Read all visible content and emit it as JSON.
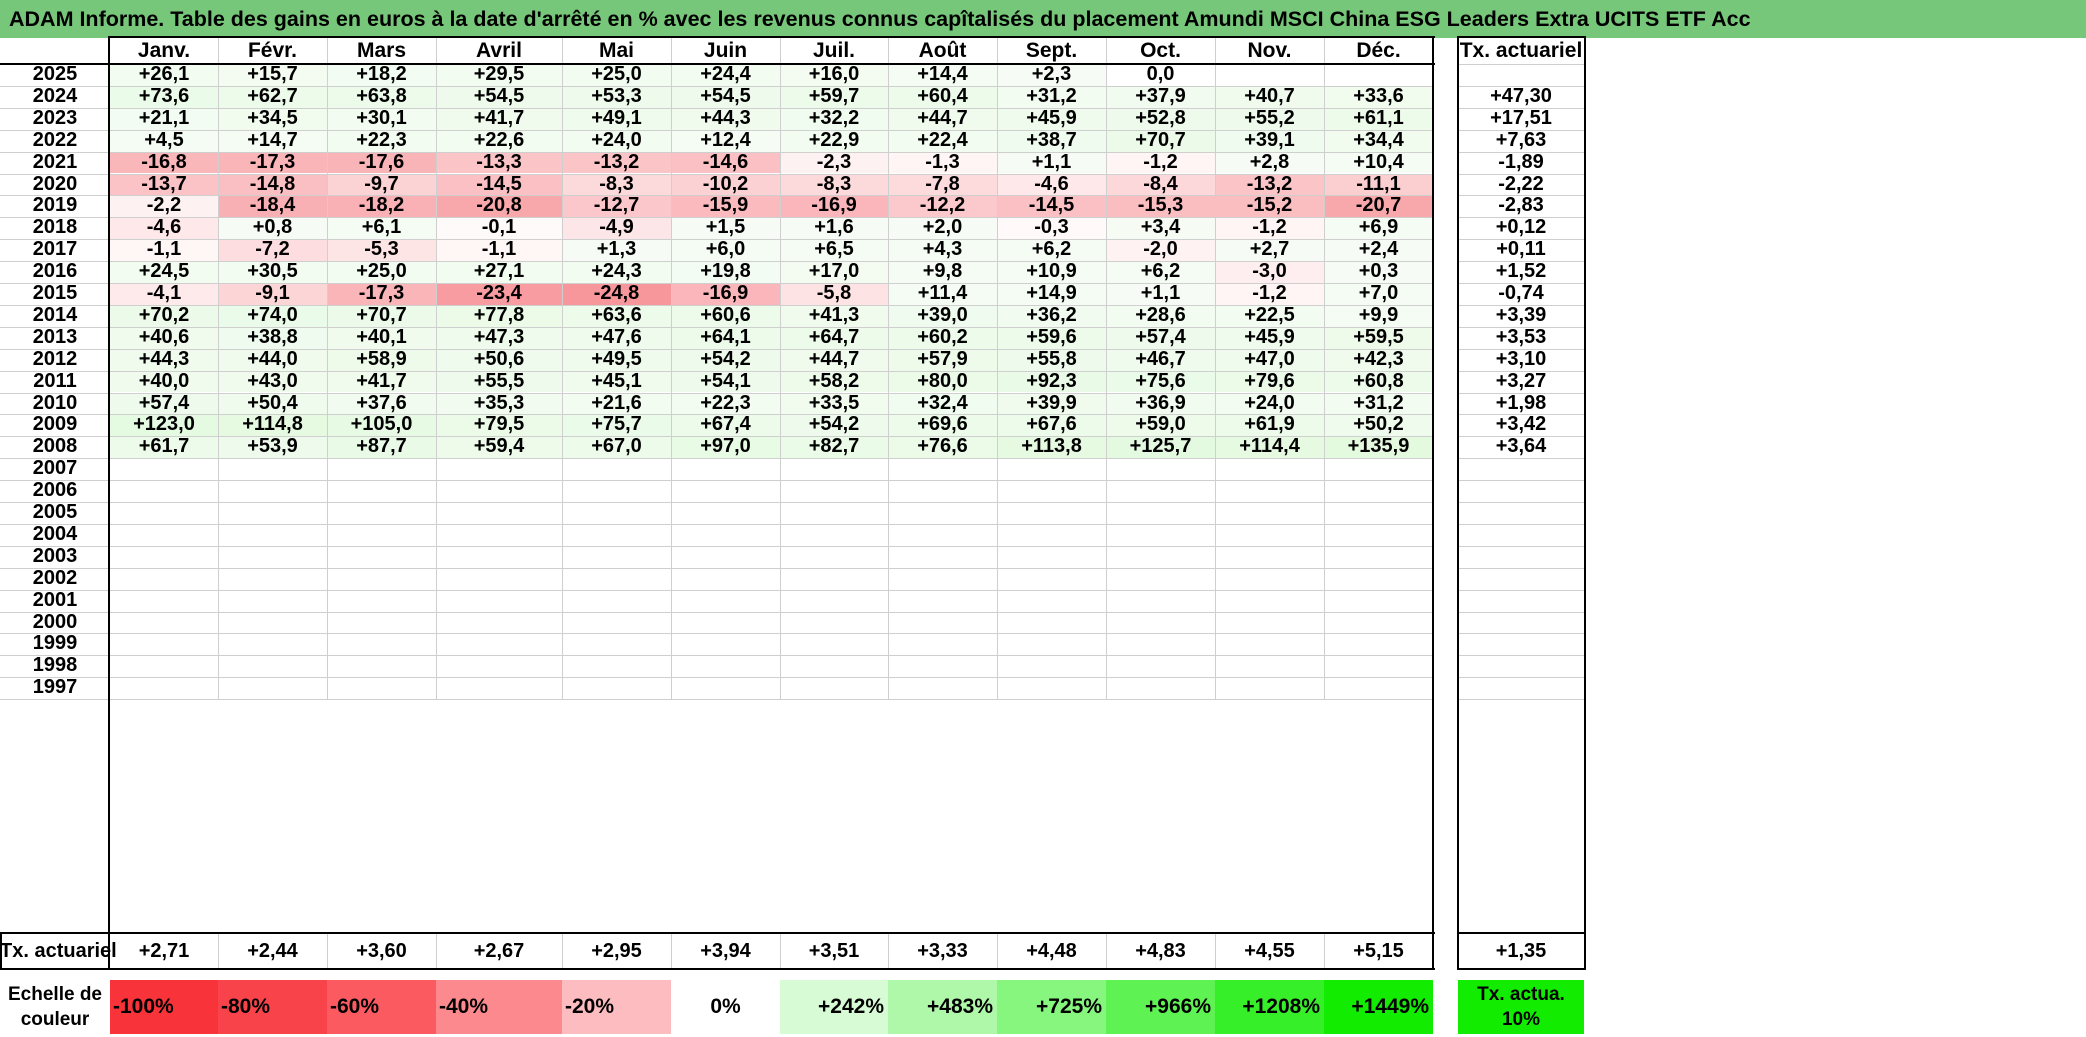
{
  "title": "ADAM Informe. Table des gains en euros à la date d'arrêté en % avec les revenus connus capîtalisés du placement Amundi MSCI China ESG Leaders Extra UCITS ETF Acc",
  "months": [
    "Janv.",
    "Févr.",
    "Mars",
    "Avril",
    "Mai",
    "Juin",
    "Juil.",
    "Août",
    "Sept.",
    "Oct.",
    "Nov.",
    "Déc."
  ],
  "annual_header": "Tx. actuariel",
  "rows": [
    {
      "year": "2025",
      "values": [
        "+26,1",
        "+15,7",
        "+18,2",
        "+29,5",
        "+25,0",
        "+24,4",
        "+16,0",
        "+14,4",
        "+2,3",
        "0,0",
        "",
        ""
      ],
      "annual": ""
    },
    {
      "year": "2024",
      "values": [
        "+73,6",
        "+62,7",
        "+63,8",
        "+54,5",
        "+53,3",
        "+54,5",
        "+59,7",
        "+60,4",
        "+31,2",
        "+37,9",
        "+40,7",
        "+33,6"
      ],
      "annual": "+47,30"
    },
    {
      "year": "2023",
      "values": [
        "+21,1",
        "+34,5",
        "+30,1",
        "+41,7",
        "+49,1",
        "+44,3",
        "+32,2",
        "+44,7",
        "+45,9",
        "+52,8",
        "+55,2",
        "+61,1"
      ],
      "annual": "+17,51"
    },
    {
      "year": "2022",
      "values": [
        "+4,5",
        "+14,7",
        "+22,3",
        "+22,6",
        "+24,0",
        "+12,4",
        "+22,9",
        "+22,4",
        "+38,7",
        "+70,7",
        "+39,1",
        "+34,4"
      ],
      "annual": "+7,63"
    },
    {
      "year": "2021",
      "values": [
        "-16,8",
        "-17,3",
        "-17,6",
        "-13,3",
        "-13,2",
        "-14,6",
        "-2,3",
        "-1,3",
        "+1,1",
        "-1,2",
        "+2,8",
        "+10,4"
      ],
      "annual": "-1,89"
    },
    {
      "year": "2020",
      "values": [
        "-13,7",
        "-14,8",
        "-9,7",
        "-14,5",
        "-8,3",
        "-10,2",
        "-8,3",
        "-7,8",
        "-4,6",
        "-8,4",
        "-13,2",
        "-11,1"
      ],
      "annual": "-2,22"
    },
    {
      "year": "2019",
      "values": [
        "-2,2",
        "-18,4",
        "-18,2",
        "-20,8",
        "-12,7",
        "-15,9",
        "-16,9",
        "-12,2",
        "-14,5",
        "-15,3",
        "-15,2",
        "-20,7"
      ],
      "annual": "-2,83"
    },
    {
      "year": "2018",
      "values": [
        "-4,6",
        "+0,8",
        "+6,1",
        "-0,1",
        "-4,9",
        "+1,5",
        "+1,6",
        "+2,0",
        "-0,3",
        "+3,4",
        "-1,2",
        "+6,9"
      ],
      "annual": "+0,12"
    },
    {
      "year": "2017",
      "values": [
        "-1,1",
        "-7,2",
        "-5,3",
        "-1,1",
        "+1,3",
        "+6,0",
        "+6,5",
        "+4,3",
        "+6,2",
        "-2,0",
        "+2,7",
        "+2,4"
      ],
      "annual": "+0,11"
    },
    {
      "year": "2016",
      "values": [
        "+24,5",
        "+30,5",
        "+25,0",
        "+27,1",
        "+24,3",
        "+19,8",
        "+17,0",
        "+9,8",
        "+10,9",
        "+6,2",
        "-3,0",
        "+0,3"
      ],
      "annual": "+1,52"
    },
    {
      "year": "2015",
      "values": [
        "-4,1",
        "-9,1",
        "-17,3",
        "-23,4",
        "-24,8",
        "-16,9",
        "-5,8",
        "+11,4",
        "+14,9",
        "+1,1",
        "-1,2",
        "+7,0"
      ],
      "annual": "-0,74"
    },
    {
      "year": "2014",
      "values": [
        "+70,2",
        "+74,0",
        "+70,7",
        "+77,8",
        "+63,6",
        "+60,6",
        "+41,3",
        "+39,0",
        "+36,2",
        "+28,6",
        "+22,5",
        "+9,9"
      ],
      "annual": "+3,39"
    },
    {
      "year": "2013",
      "values": [
        "+40,6",
        "+38,8",
        "+40,1",
        "+47,3",
        "+47,6",
        "+64,1",
        "+64,7",
        "+60,2",
        "+59,6",
        "+57,4",
        "+45,9",
        "+59,5"
      ],
      "annual": "+3,53"
    },
    {
      "year": "2012",
      "values": [
        "+44,3",
        "+44,0",
        "+58,9",
        "+50,6",
        "+49,5",
        "+54,2",
        "+44,7",
        "+57,9",
        "+55,8",
        "+46,7",
        "+47,0",
        "+42,3"
      ],
      "annual": "+3,10"
    },
    {
      "year": "2011",
      "values": [
        "+40,0",
        "+43,0",
        "+41,7",
        "+55,5",
        "+45,1",
        "+54,1",
        "+58,2",
        "+80,0",
        "+92,3",
        "+75,6",
        "+79,6",
        "+60,8"
      ],
      "annual": "+3,27"
    },
    {
      "year": "2010",
      "values": [
        "+57,4",
        "+50,4",
        "+37,6",
        "+35,3",
        "+21,6",
        "+22,3",
        "+33,5",
        "+32,4",
        "+39,9",
        "+36,9",
        "+24,0",
        "+31,2"
      ],
      "annual": "+1,98"
    },
    {
      "year": "2009",
      "values": [
        "+123,0",
        "+114,8",
        "+105,0",
        "+79,5",
        "+75,7",
        "+67,4",
        "+54,2",
        "+69,6",
        "+67,6",
        "+59,0",
        "+61,9",
        "+50,2"
      ],
      "annual": "+3,42"
    },
    {
      "year": "2008",
      "values": [
        "+61,7",
        "+53,9",
        "+87,7",
        "+59,4",
        "+67,0",
        "+97,0",
        "+82,7",
        "+76,6",
        "+113,8",
        "+125,7",
        "+114,4",
        "+135,9"
      ],
      "annual": "+3,64"
    },
    {
      "year": "2007",
      "values": [
        "",
        "",
        "",
        "",
        "",
        "",
        "",
        "",
        "",
        "",
        "",
        ""
      ],
      "annual": ""
    },
    {
      "year": "2006",
      "values": [
        "",
        "",
        "",
        "",
        "",
        "",
        "",
        "",
        "",
        "",
        "",
        ""
      ],
      "annual": ""
    },
    {
      "year": "2005",
      "values": [
        "",
        "",
        "",
        "",
        "",
        "",
        "",
        "",
        "",
        "",
        "",
        ""
      ],
      "annual": ""
    },
    {
      "year": "2004",
      "values": [
        "",
        "",
        "",
        "",
        "",
        "",
        "",
        "",
        "",
        "",
        "",
        ""
      ],
      "annual": ""
    },
    {
      "year": "2003",
      "values": [
        "",
        "",
        "",
        "",
        "",
        "",
        "",
        "",
        "",
        "",
        "",
        ""
      ],
      "annual": ""
    },
    {
      "year": "2002",
      "values": [
        "",
        "",
        "",
        "",
        "",
        "",
        "",
        "",
        "",
        "",
        "",
        ""
      ],
      "annual": ""
    },
    {
      "year": "2001",
      "values": [
        "",
        "",
        "",
        "",
        "",
        "",
        "",
        "",
        "",
        "",
        "",
        ""
      ],
      "annual": ""
    },
    {
      "year": "2000",
      "values": [
        "",
        "",
        "",
        "",
        "",
        "",
        "",
        "",
        "",
        "",
        "",
        ""
      ],
      "annual": ""
    },
    {
      "year": "1999",
      "values": [
        "",
        "",
        "",
        "",
        "",
        "",
        "",
        "",
        "",
        "",
        "",
        ""
      ],
      "annual": ""
    },
    {
      "year": "1998",
      "values": [
        "",
        "",
        "",
        "",
        "",
        "",
        "",
        "",
        "",
        "",
        "",
        ""
      ],
      "annual": ""
    },
    {
      "year": "1997",
      "values": [
        "",
        "",
        "",
        "",
        "",
        "",
        "",
        "",
        "",
        "",
        "",
        ""
      ],
      "annual": ""
    }
  ],
  "footer": {
    "label": "Tx. actuariel",
    "values": [
      "+2,71",
      "+2,44",
      "+3,60",
      "+2,67",
      "+2,95",
      "+3,94",
      "+3,51",
      "+3,33",
      "+4,48",
      "+4,83",
      "+4,55",
      "+5,15"
    ],
    "annual": "+1,35"
  },
  "scale": {
    "label": "Echelle de couleur",
    "items": [
      {
        "text": "-100%",
        "color": "#f8333a",
        "align": "left"
      },
      {
        "text": "-80%",
        "color": "#f8434a",
        "align": "left"
      },
      {
        "text": "-60%",
        "color": "#fa5a60",
        "align": "left"
      },
      {
        "text": "-40%",
        "color": "#fb898e",
        "align": "left"
      },
      {
        "text": "-20%",
        "color": "#fdbcbf",
        "align": "left"
      },
      {
        "text": "0%",
        "color": "#ffffff",
        "align": "center"
      },
      {
        "text": "+242%",
        "color": "#d7fbd4",
        "align": "right"
      },
      {
        "text": "+483%",
        "color": "#aff8aa",
        "align": "right"
      },
      {
        "text": "+725%",
        "color": "#86f67e",
        "align": "right"
      },
      {
        "text": "+966%",
        "color": "#5ef253",
        "align": "right"
      },
      {
        "text": "+1208%",
        "color": "#36ef29",
        "align": "right"
      },
      {
        "text": "+1449%",
        "color": "#11ec00",
        "align": "right"
      }
    ],
    "annual_label": "Tx. actua. 10%",
    "annual_color": "#11ec00"
  }
}
